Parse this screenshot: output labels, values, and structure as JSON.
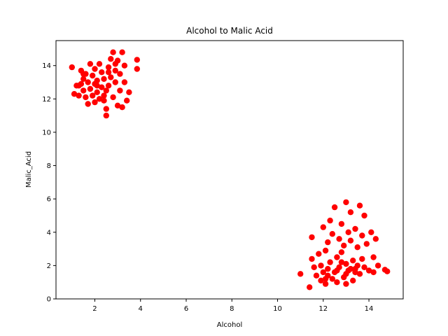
{
  "chart_data": {
    "type": "scatter",
    "title": "Alcohol to Malic Acid",
    "xlabel": "Alcohol",
    "ylabel": "Malic_Acid",
    "xlim": [
      0.3,
      15.5
    ],
    "ylim": [
      0,
      15.5
    ],
    "xticks": [
      2,
      4,
      6,
      8,
      10,
      12,
      14
    ],
    "yticks": [
      0,
      2,
      4,
      6,
      8,
      10,
      12,
      14
    ],
    "grid": false,
    "legend": "none",
    "color": "#ff0000",
    "series": [
      {
        "points": [
          [
            1.0,
            13.9
          ],
          [
            1.1,
            12.3
          ],
          [
            1.2,
            12.8
          ],
          [
            1.3,
            12.2
          ],
          [
            1.4,
            13.7
          ],
          [
            1.4,
            12.9
          ],
          [
            1.5,
            13.2
          ],
          [
            1.5,
            12.5
          ],
          [
            1.6,
            13.5
          ],
          [
            1.6,
            12.1
          ],
          [
            1.7,
            13.0
          ],
          [
            1.7,
            11.7
          ],
          [
            1.8,
            14.1
          ],
          [
            1.8,
            12.6
          ],
          [
            1.9,
            13.4
          ],
          [
            1.9,
            12.2
          ],
          [
            2.0,
            13.8
          ],
          [
            2.0,
            12.9
          ],
          [
            2.0,
            11.8
          ],
          [
            2.1,
            13.1
          ],
          [
            2.1,
            12.4
          ],
          [
            2.2,
            14.1
          ],
          [
            2.2,
            12.0
          ],
          [
            2.3,
            13.6
          ],
          [
            2.3,
            12.7
          ],
          [
            2.4,
            13.2
          ],
          [
            2.4,
            11.9
          ],
          [
            2.5,
            12.5
          ],
          [
            2.5,
            11.4
          ],
          [
            2.5,
            11.0
          ],
          [
            2.6,
            13.9
          ],
          [
            2.6,
            12.8
          ],
          [
            2.7,
            14.4
          ],
          [
            2.7,
            13.3
          ],
          [
            2.8,
            14.8
          ],
          [
            2.8,
            12.1
          ],
          [
            2.9,
            13.7
          ],
          [
            2.9,
            13.0
          ],
          [
            3.0,
            14.3
          ],
          [
            3.0,
            11.6
          ],
          [
            3.1,
            13.5
          ],
          [
            3.1,
            12.5
          ],
          [
            3.2,
            14.8
          ],
          [
            3.2,
            11.5
          ],
          [
            3.3,
            14.0
          ],
          [
            3.3,
            13.0
          ],
          [
            3.4,
            11.9
          ],
          [
            3.5,
            12.4
          ],
          [
            3.85,
            14.35
          ],
          [
            3.85,
            13.8
          ],
          [
            1.5,
            13.5
          ],
          [
            2.1,
            12.8
          ],
          [
            2.6,
            13.6
          ],
          [
            2.9,
            14.1
          ],
          [
            1.3,
            12.8
          ],
          [
            2.4,
            12.2
          ],
          [
            11.0,
            1.5
          ],
          [
            11.4,
            0.7
          ],
          [
            11.5,
            3.7
          ],
          [
            11.5,
            2.4
          ],
          [
            11.6,
            1.9
          ],
          [
            11.7,
            1.4
          ],
          [
            11.8,
            2.7
          ],
          [
            11.9,
            1.1
          ],
          [
            11.9,
            2.0
          ],
          [
            12.0,
            4.3
          ],
          [
            12.0,
            1.6
          ],
          [
            12.1,
            2.9
          ],
          [
            12.1,
            0.9
          ],
          [
            12.2,
            3.4
          ],
          [
            12.2,
            1.8
          ],
          [
            12.3,
            4.7
          ],
          [
            12.3,
            2.2
          ],
          [
            12.4,
            1.2
          ],
          [
            12.4,
            3.9
          ],
          [
            12.5,
            5.5
          ],
          [
            12.5,
            1.6
          ],
          [
            12.6,
            2.5
          ],
          [
            12.6,
            1.0
          ],
          [
            12.7,
            3.6
          ],
          [
            12.7,
            1.9
          ],
          [
            12.8,
            4.5
          ],
          [
            12.8,
            2.8
          ],
          [
            12.9,
            1.3
          ],
          [
            12.9,
            3.2
          ],
          [
            13.0,
            5.8
          ],
          [
            13.0,
            2.1
          ],
          [
            13.0,
            0.9
          ],
          [
            13.1,
            4.0
          ],
          [
            13.1,
            1.7
          ],
          [
            13.2,
            5.2
          ],
          [
            13.2,
            3.5
          ],
          [
            13.3,
            2.3
          ],
          [
            13.3,
            1.1
          ],
          [
            13.4,
            4.2
          ],
          [
            13.4,
            1.8
          ],
          [
            13.5,
            3.1
          ],
          [
            13.5,
            2.0
          ],
          [
            13.6,
            5.6
          ],
          [
            13.6,
            1.5
          ],
          [
            13.7,
            3.8
          ],
          [
            13.7,
            2.4
          ],
          [
            13.8,
            5.0
          ],
          [
            13.8,
            1.9
          ],
          [
            13.9,
            3.3
          ],
          [
            14.0,
            1.7
          ],
          [
            14.1,
            4.0
          ],
          [
            14.2,
            2.5
          ],
          [
            14.2,
            1.6
          ],
          [
            14.3,
            3.6
          ],
          [
            14.4,
            2.0
          ],
          [
            14.7,
            1.75
          ],
          [
            14.8,
            1.65
          ],
          [
            12.2,
            1.4
          ],
          [
            12.6,
            1.7
          ],
          [
            13.0,
            1.5
          ],
          [
            13.4,
            1.6
          ],
          [
            12.8,
            2.2
          ],
          [
            13.2,
            1.8
          ],
          [
            12.1,
            1.2
          ]
        ]
      }
    ]
  }
}
